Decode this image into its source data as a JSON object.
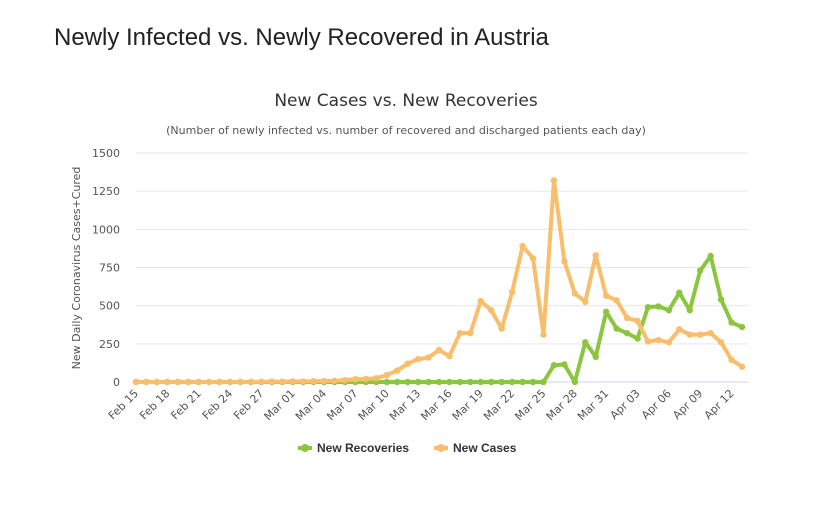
{
  "page": {
    "heading": "Newly Infected vs. Newly Recovered in Austria"
  },
  "chart_data": {
    "type": "line",
    "title": "New Cases vs. New Recoveries",
    "subtitle": "(Number of newly infected vs. number of recovered and discharged patients each day)",
    "ylabel": "New Daily Coronavirus Cases+Cured",
    "xlabel": "",
    "ylim": [
      0,
      1500
    ],
    "yticks": [
      0,
      250,
      500,
      750,
      1000,
      1250,
      1500
    ],
    "grid": true,
    "legend_position": "bottom-center",
    "x": [
      "Feb 15",
      "Feb 16",
      "Feb 17",
      "Feb 18",
      "Feb 19",
      "Feb 20",
      "Feb 21",
      "Feb 22",
      "Feb 23",
      "Feb 24",
      "Feb 25",
      "Feb 26",
      "Feb 27",
      "Feb 28",
      "Feb 29",
      "Mar 01",
      "Mar 02",
      "Mar 03",
      "Mar 04",
      "Mar 05",
      "Mar 06",
      "Mar 07",
      "Mar 08",
      "Mar 09",
      "Mar 10",
      "Mar 11",
      "Mar 12",
      "Mar 13",
      "Mar 14",
      "Mar 15",
      "Mar 16",
      "Mar 17",
      "Mar 18",
      "Mar 19",
      "Mar 20",
      "Mar 21",
      "Mar 22",
      "Mar 23",
      "Mar 24",
      "Mar 25",
      "Mar 26",
      "Mar 27",
      "Mar 28",
      "Mar 29",
      "Mar 30",
      "Mar 31",
      "Apr 01",
      "Apr 02",
      "Apr 03",
      "Apr 04",
      "Apr 05",
      "Apr 06",
      "Apr 07",
      "Apr 08",
      "Apr 09",
      "Apr 10",
      "Apr 11",
      "Apr 12",
      "Apr 13"
    ],
    "xtick_labels": [
      "Feb 15",
      "Feb 18",
      "Feb 21",
      "Feb 24",
      "Feb 27",
      "Mar 01",
      "Mar 04",
      "Mar 07",
      "Mar 10",
      "Mar 13",
      "Mar 16",
      "Mar 19",
      "Mar 22",
      "Mar 25",
      "Mar 28",
      "Mar 31",
      "Apr 03",
      "Apr 06",
      "Apr 09",
      "Apr 12"
    ],
    "series": [
      {
        "name": "New Recoveries",
        "color": "#8cc63f",
        "values": [
          0,
          0,
          0,
          0,
          0,
          0,
          0,
          0,
          0,
          0,
          0,
          0,
          0,
          0,
          0,
          0,
          0,
          0,
          0,
          0,
          0,
          0,
          0,
          0,
          0,
          0,
          0,
          0,
          0,
          0,
          0,
          0,
          0,
          0,
          0,
          0,
          0,
          0,
          0,
          0,
          110,
          115,
          0,
          260,
          165,
          460,
          350,
          320,
          285,
          490,
          495,
          470,
          585,
          470,
          730,
          825,
          540,
          390,
          360
        ]
      },
      {
        "name": "New Cases",
        "color": "#f9be6b",
        "values": [
          0,
          0,
          0,
          0,
          0,
          0,
          0,
          0,
          0,
          0,
          0,
          0,
          2,
          3,
          2,
          4,
          4,
          5,
          6,
          8,
          12,
          18,
          20,
          25,
          45,
          75,
          120,
          150,
          160,
          210,
          170,
          320,
          320,
          530,
          470,
          350,
          590,
          890,
          810,
          310,
          1320,
          790,
          580,
          525,
          830,
          565,
          535,
          420,
          400,
          265,
          275,
          260,
          345,
          310,
          310,
          320,
          260,
          145,
          100
        ]
      }
    ]
  }
}
